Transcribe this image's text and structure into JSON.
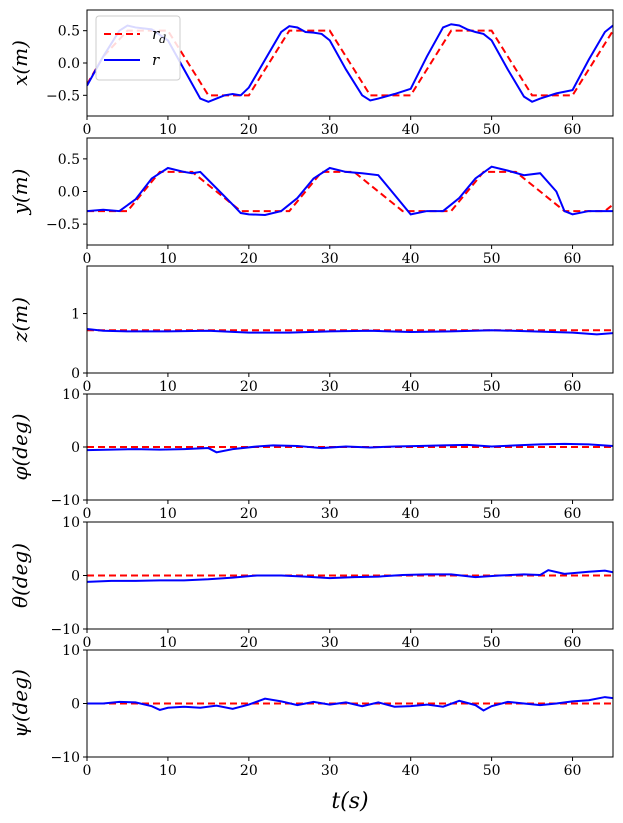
{
  "chart_data": [
    {
      "type": "line",
      "ylabel": "x(m)",
      "xlim": [
        0,
        65
      ],
      "ylim": [
        -0.82,
        0.82
      ],
      "xticks": [
        "0",
        "10",
        "20",
        "30",
        "40",
        "50",
        "60"
      ],
      "yticks": [
        "0.5",
        "0.0",
        "−0.5"
      ],
      "ytick_values": [
        0.5,
        0.0,
        -0.5
      ],
      "legend": {
        "position": "top-left",
        "entries": [
          "r_d",
          "r"
        ]
      },
      "series": [
        {
          "name": "r_d",
          "color": "#ff0000",
          "style": "dashed",
          "x": [
            0,
            2,
            5,
            10,
            15,
            20,
            25,
            30,
            35,
            40,
            45,
            50,
            55,
            60,
            65
          ],
          "y": [
            -0.33,
            0.1,
            0.5,
            0.5,
            -0.5,
            -0.5,
            0.5,
            0.5,
            -0.5,
            -0.5,
            0.5,
            0.5,
            -0.5,
            -0.5,
            0.5
          ]
        },
        {
          "name": "r",
          "color": "#0000ff",
          "style": "solid",
          "x": [
            0,
            2,
            4,
            5,
            6,
            8,
            10,
            12,
            14,
            15,
            16,
            17,
            18,
            19,
            20,
            22,
            24,
            25,
            26,
            27,
            28,
            29,
            30,
            32,
            34,
            35,
            36,
            38,
            40,
            42,
            44,
            45,
            46,
            47,
            48,
            49,
            50,
            52,
            54,
            55,
            56,
            58,
            60,
            62,
            64,
            65
          ],
          "y": [
            -0.35,
            0.1,
            0.5,
            0.58,
            0.55,
            0.52,
            0.35,
            -0.1,
            -0.55,
            -0.6,
            -0.55,
            -0.5,
            -0.48,
            -0.5,
            -0.38,
            0.05,
            0.48,
            0.57,
            0.55,
            0.48,
            0.47,
            0.45,
            0.35,
            -0.1,
            -0.5,
            -0.58,
            -0.55,
            -0.48,
            -0.4,
            0.1,
            0.55,
            0.6,
            0.58,
            0.52,
            0.48,
            0.45,
            0.35,
            -0.1,
            -0.52,
            -0.6,
            -0.55,
            -0.47,
            -0.42,
            0.05,
            0.48,
            0.58
          ]
        }
      ]
    },
    {
      "type": "line",
      "ylabel": "y(m)",
      "xlim": [
        0,
        65
      ],
      "ylim": [
        -0.82,
        0.82
      ],
      "xticks": [
        "0",
        "10",
        "20",
        "30",
        "40",
        "50",
        "60"
      ],
      "yticks": [
        "0.5",
        "0.0",
        "−0.5"
      ],
      "ytick_values": [
        0.5,
        0.0,
        -0.5
      ],
      "series": [
        {
          "name": "r_d",
          "color": "#ff0000",
          "style": "dashed",
          "x": [
            0,
            5,
            9,
            13,
            19,
            25,
            29,
            33,
            39,
            45,
            49,
            53,
            59,
            64,
            65
          ],
          "y": [
            -0.3,
            -0.3,
            0.3,
            0.3,
            -0.3,
            -0.3,
            0.3,
            0.3,
            -0.3,
            -0.3,
            0.3,
            0.3,
            -0.3,
            -0.3,
            -0.2
          ]
        },
        {
          "name": "r",
          "color": "#0000ff",
          "style": "solid",
          "x": [
            0,
            2,
            4,
            6,
            8,
            10,
            12,
            13,
            14,
            16,
            18,
            19,
            20,
            22,
            24,
            26,
            28,
            30,
            32,
            34,
            36,
            38,
            40,
            42,
            44,
            46,
            48,
            50,
            52,
            54,
            56,
            58,
            59,
            60,
            62,
            64,
            65
          ],
          "y": [
            -0.3,
            -0.28,
            -0.3,
            -0.12,
            0.2,
            0.36,
            0.3,
            0.28,
            0.3,
            0.05,
            -0.2,
            -0.33,
            -0.35,
            -0.36,
            -0.3,
            -0.1,
            0.2,
            0.36,
            0.3,
            0.28,
            0.25,
            -0.05,
            -0.35,
            -0.3,
            -0.3,
            -0.1,
            0.2,
            0.38,
            0.32,
            0.25,
            0.28,
            0.0,
            -0.3,
            -0.35,
            -0.3,
            -0.3,
            -0.3
          ]
        }
      ]
    },
    {
      "type": "line",
      "ylabel": "z(m)",
      "xlim": [
        0,
        65
      ],
      "ylim": [
        0,
        1.8
      ],
      "xticks": [
        "0",
        "10",
        "20",
        "30",
        "40",
        "50",
        "60"
      ],
      "yticks": [
        "1",
        "0"
      ],
      "ytick_values": [
        1,
        0
      ],
      "series": [
        {
          "name": "r_d",
          "color": "#ff0000",
          "style": "dashed",
          "x": [
            0,
            65
          ],
          "y": [
            0.72,
            0.72
          ]
        },
        {
          "name": "r",
          "color": "#0000ff",
          "style": "solid",
          "x": [
            0,
            2,
            5,
            10,
            15,
            20,
            25,
            30,
            35,
            40,
            45,
            50,
            55,
            60,
            63,
            65
          ],
          "y": [
            0.74,
            0.71,
            0.7,
            0.7,
            0.71,
            0.68,
            0.68,
            0.7,
            0.71,
            0.69,
            0.7,
            0.72,
            0.7,
            0.68,
            0.65,
            0.67
          ]
        }
      ]
    },
    {
      "type": "line",
      "ylabel": "φ(deg)",
      "xlim": [
        0,
        65
      ],
      "ylim": [
        -10,
        10
      ],
      "xticks": [
        "0",
        "10",
        "20",
        "30",
        "40",
        "50",
        "60"
      ],
      "yticks": [
        "10",
        "0",
        "−10"
      ],
      "ytick_values": [
        10,
        0,
        -10
      ],
      "series": [
        {
          "name": "r_d",
          "color": "#ff0000",
          "style": "dashed",
          "x": [
            0,
            65
          ],
          "y": [
            0,
            0
          ]
        },
        {
          "name": "r",
          "color": "#0000ff",
          "style": "solid",
          "x": [
            0,
            3,
            6,
            9,
            12,
            15,
            16,
            18,
            21,
            23,
            26,
            29,
            32,
            35,
            38,
            41,
            44,
            47,
            50,
            53,
            56,
            59,
            62,
            65
          ],
          "y": [
            -0.6,
            -0.5,
            -0.4,
            -0.5,
            -0.4,
            -0.2,
            -1.0,
            -0.4,
            0.1,
            0.3,
            0.2,
            -0.2,
            0.1,
            -0.1,
            0.1,
            0.2,
            0.3,
            0.4,
            0.1,
            0.3,
            0.5,
            0.6,
            0.5,
            0.2
          ]
        }
      ]
    },
    {
      "type": "line",
      "ylabel": "θ(deg)",
      "xlim": [
        0,
        65
      ],
      "ylim": [
        -10,
        10
      ],
      "xticks": [
        "0",
        "10",
        "20",
        "30",
        "40",
        "50",
        "60"
      ],
      "yticks": [
        "10",
        "0",
        "−10"
      ],
      "ytick_values": [
        10,
        0,
        -10
      ],
      "series": [
        {
          "name": "r_d",
          "color": "#ff0000",
          "style": "dashed",
          "x": [
            0,
            65
          ],
          "y": [
            0,
            0
          ]
        },
        {
          "name": "r",
          "color": "#0000ff",
          "style": "solid",
          "x": [
            0,
            3,
            6,
            9,
            12,
            15,
            18,
            21,
            24,
            27,
            30,
            33,
            36,
            39,
            42,
            45,
            48,
            51,
            54,
            56,
            57,
            59,
            62,
            64,
            65
          ],
          "y": [
            -1.2,
            -1.0,
            -1.0,
            -0.9,
            -0.9,
            -0.7,
            -0.4,
            0.0,
            0.0,
            -0.2,
            -0.5,
            -0.3,
            -0.2,
            0.1,
            0.2,
            0.2,
            -0.3,
            0.0,
            0.2,
            0.1,
            1.0,
            0.3,
            0.7,
            0.9,
            0.6
          ]
        }
      ]
    },
    {
      "type": "line",
      "ylabel": "ψ(deg)",
      "xlabel": "t(s)",
      "xlim": [
        0,
        65
      ],
      "ylim": [
        -10,
        10
      ],
      "xticks": [
        "0",
        "10",
        "20",
        "30",
        "40",
        "50",
        "60"
      ],
      "yticks": [
        "10",
        "0",
        "−10"
      ],
      "ytick_values": [
        10,
        0,
        -10
      ],
      "series": [
        {
          "name": "r_d",
          "color": "#ff0000",
          "style": "dashed",
          "x": [
            0,
            65
          ],
          "y": [
            0,
            0
          ]
        },
        {
          "name": "r",
          "color": "#0000ff",
          "style": "solid",
          "x": [
            0,
            2,
            4,
            6,
            8,
            9,
            10,
            12,
            14,
            16,
            18,
            20,
            22,
            24,
            26,
            28,
            30,
            32,
            34,
            36,
            38,
            40,
            42,
            44,
            46,
            48,
            49,
            50,
            52,
            54,
            56,
            58,
            60,
            62,
            64,
            65
          ],
          "y": [
            0.0,
            0.0,
            0.3,
            0.2,
            -0.5,
            -1.2,
            -0.8,
            -0.6,
            -0.8,
            -0.4,
            -1.0,
            -0.2,
            0.9,
            0.4,
            -0.3,
            0.3,
            -0.2,
            0.2,
            -0.5,
            0.2,
            -0.6,
            -0.5,
            -0.2,
            -0.6,
            0.5,
            -0.3,
            -1.3,
            -0.5,
            0.3,
            0.0,
            -0.3,
            0.0,
            0.4,
            0.6,
            1.2,
            1.0
          ]
        }
      ]
    }
  ]
}
